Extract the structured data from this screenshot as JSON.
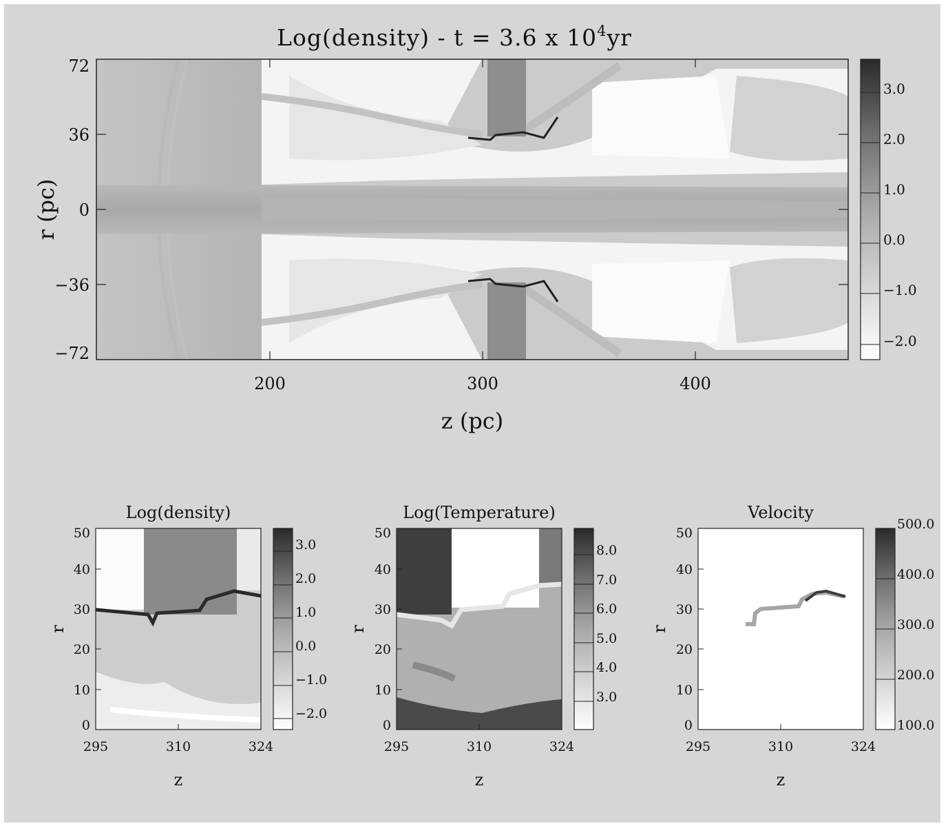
{
  "main_panel": {
    "title": "Log(density) - t = 3.6 x 10",
    "title_exp": "4",
    "title_unit": "yr",
    "xlabel": "z (pc)",
    "ylabel": "r (pc)",
    "xticks": [
      "200",
      "300",
      "400"
    ],
    "yticks": [
      "72",
      "36",
      "0",
      "−36",
      "−72"
    ],
    "colorbar": [
      "3.0",
      "2.0",
      "1.0",
      "0.0",
      "−1.0",
      "−2.0"
    ]
  },
  "subpanels": [
    {
      "title": "Log(density)",
      "xlabel": "z",
      "ylabel": "r",
      "xticks": [
        "295",
        "310",
        "324"
      ],
      "yticks": [
        "50",
        "40",
        "30",
        "20",
        "10",
        "0"
      ],
      "colorbar": [
        "3.0",
        "2.0",
        "1.0",
        "0.0",
        "−1.0",
        "−2.0"
      ]
    },
    {
      "title": "Log(Temperature)",
      "xlabel": "z",
      "ylabel": "r",
      "xticks": [
        "295",
        "310",
        "324"
      ],
      "yticks": [
        "50",
        "40",
        "30",
        "20",
        "10",
        "0"
      ],
      "colorbar": [
        "8.0",
        "7.0",
        "6.0",
        "5.0",
        "4.0",
        "3.0"
      ]
    },
    {
      "title": "Velocity",
      "xlabel": "z",
      "ylabel": "r",
      "xticks": [
        "295",
        "310",
        "324"
      ],
      "yticks": [
        "50",
        "40",
        "30",
        "20",
        "10",
        "0"
      ],
      "colorbar": [
        "500.0",
        "400.0",
        "300.0",
        "200.0",
        "100.0"
      ]
    }
  ]
}
